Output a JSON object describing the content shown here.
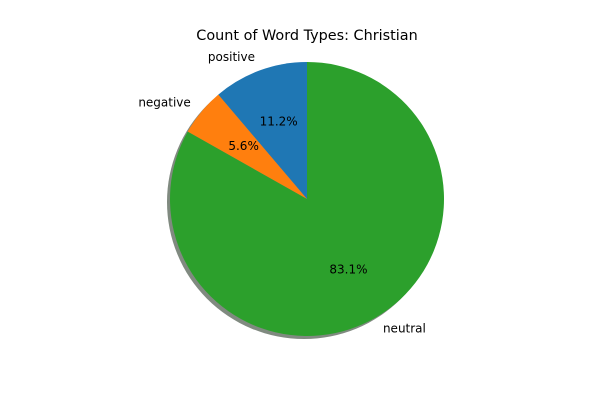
{
  "chart_data": {
    "type": "pie",
    "title": "Count of Word Types: Christian",
    "slices": [
      {
        "label": "positive",
        "value": 11.2,
        "pct_label": "11.2%",
        "color": "#1f77b4"
      },
      {
        "label": "negative",
        "value": 5.6,
        "pct_label": "5.6%",
        "color": "#ff7f0e"
      },
      {
        "label": "neutral",
        "value": 83.1,
        "pct_label": "83.1%",
        "color": "#2ca02c"
      }
    ],
    "start_angle_deg": 90,
    "direction": "counterclockwise",
    "shadow": true,
    "legend": "none"
  }
}
